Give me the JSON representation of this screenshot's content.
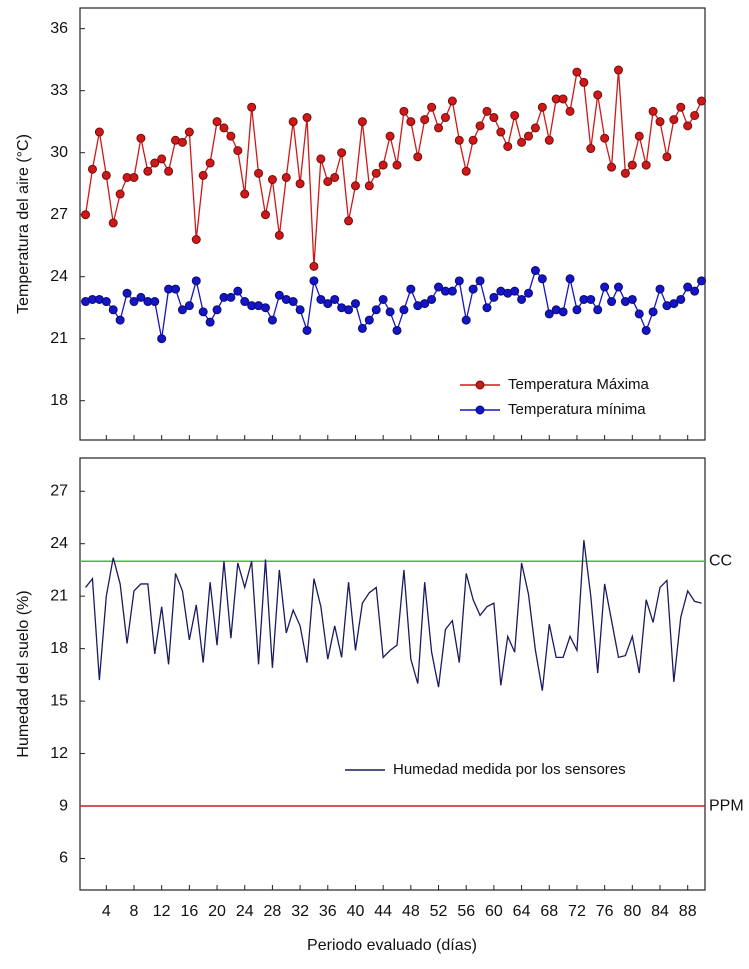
{
  "chart_data": [
    {
      "type": "line",
      "ylabel": "Temperatura del aire (°C)",
      "x": [
        1,
        2,
        3,
        4,
        5,
        6,
        7,
        8,
        9,
        10,
        11,
        12,
        13,
        14,
        15,
        16,
        17,
        18,
        19,
        20,
        21,
        22,
        23,
        24,
        25,
        26,
        27,
        28,
        29,
        30,
        31,
        32,
        33,
        34,
        35,
        36,
        37,
        38,
        39,
        40,
        41,
        42,
        43,
        44,
        45,
        46,
        47,
        48,
        49,
        50,
        51,
        52,
        53,
        54,
        55,
        56,
        57,
        58,
        59,
        60,
        61,
        62,
        63,
        64,
        65,
        66,
        67,
        68,
        69,
        70,
        71,
        72,
        73,
        74,
        75,
        76,
        77,
        78,
        79,
        80,
        81,
        82,
        83,
        84,
        85,
        86,
        87,
        88,
        89,
        90
      ],
      "series": [
        {
          "name": "Temperatura Máxima",
          "color": "#d01818",
          "marker": true,
          "values": [
            27.0,
            29.2,
            31.0,
            28.9,
            26.6,
            28.0,
            28.8,
            28.8,
            30.7,
            29.1,
            29.5,
            29.7,
            29.1,
            30.6,
            30.5,
            31.0,
            25.8,
            28.9,
            29.5,
            31.5,
            31.2,
            30.8,
            30.1,
            28.0,
            32.2,
            29.0,
            27.0,
            28.7,
            26.0,
            28.8,
            31.5,
            28.5,
            31.7,
            24.5,
            29.7,
            28.6,
            28.8,
            30.0,
            26.7,
            28.4,
            31.5,
            28.4,
            29.0,
            29.4,
            30.8,
            29.4,
            32.0,
            31.5,
            29.8,
            31.6,
            32.2,
            31.2,
            31.7,
            32.5,
            30.6,
            29.1,
            30.6,
            31.3,
            32.0,
            31.7,
            31.0,
            30.3,
            31.8,
            30.5,
            30.8,
            31.2,
            32.2,
            30.6,
            32.6,
            32.6,
            32.0,
            33.9,
            33.4,
            30.2,
            32.8,
            30.7,
            29.3,
            34.0,
            29.0,
            29.4,
            30.8,
            29.4,
            32.0,
            31.5,
            29.8,
            31.6,
            32.2,
            31.3,
            31.8,
            32.5
          ]
        },
        {
          "name": "Temperatura mínima",
          "color": "#1414c8",
          "marker": true,
          "values": [
            22.8,
            22.9,
            22.9,
            22.8,
            22.4,
            21.9,
            23.2,
            22.8,
            23.0,
            22.8,
            22.8,
            21.0,
            23.4,
            23.4,
            22.4,
            22.6,
            23.8,
            22.3,
            21.8,
            22.4,
            23.0,
            23.0,
            23.3,
            22.8,
            22.6,
            22.6,
            22.5,
            21.9,
            23.1,
            22.9,
            22.8,
            22.4,
            21.4,
            23.8,
            22.9,
            22.7,
            22.9,
            22.5,
            22.4,
            22.7,
            21.5,
            21.9,
            22.4,
            22.9,
            22.3,
            21.4,
            22.4,
            23.4,
            22.6,
            22.7,
            22.9,
            23.5,
            23.3,
            23.3,
            23.8,
            21.9,
            23.4,
            23.8,
            22.5,
            23.0,
            23.3,
            23.2,
            23.3,
            22.9,
            23.2,
            24.3,
            23.9,
            22.2,
            22.4,
            22.3,
            23.9,
            22.4,
            22.9,
            22.9,
            22.4,
            23.5,
            22.8,
            23.5,
            22.8,
            22.9,
            22.2,
            21.4,
            22.3,
            23.4,
            22.6,
            22.7,
            22.9,
            23.5,
            23.3,
            23.8
          ]
        }
      ],
      "xlim": [
        0.2,
        90.5
      ],
      "ylim": [
        16.1,
        37
      ],
      "yticks": [
        18,
        21,
        24,
        27,
        30,
        33,
        36
      ],
      "legend": "lower right"
    },
    {
      "type": "line",
      "ylabel": "Humedad del suelo (%)",
      "xlabel": "Periodo evaluado (días)",
      "x": [
        1,
        2,
        3,
        4,
        5,
        6,
        7,
        8,
        9,
        10,
        11,
        12,
        13,
        14,
        15,
        16,
        17,
        18,
        19,
        20,
        21,
        22,
        23,
        24,
        25,
        26,
        27,
        28,
        29,
        30,
        31,
        32,
        33,
        34,
        35,
        36,
        37,
        38,
        39,
        40,
        41,
        42,
        43,
        44,
        45,
        46,
        47,
        48,
        49,
        50,
        51,
        52,
        53,
        54,
        55,
        56,
        57,
        58,
        59,
        60,
        61,
        62,
        63,
        64,
        65,
        66,
        67,
        68,
        69,
        70,
        71,
        72,
        73,
        74,
        75,
        76,
        77,
        78,
        79,
        80,
        81,
        82,
        83,
        84,
        85,
        86,
        87,
        88,
        89,
        90
      ],
      "series": [
        {
          "name": "Humedad medida por los sensores",
          "color": "#1a1a60",
          "marker": false,
          "values": [
            21.5,
            22.0,
            16.2,
            21.0,
            23.2,
            21.7,
            18.3,
            21.3,
            21.7,
            21.7,
            17.7,
            20.4,
            17.1,
            22.3,
            21.3,
            18.5,
            20.5,
            17.2,
            21.8,
            18.2,
            23.0,
            18.6,
            22.9,
            21.5,
            23.0,
            17.1,
            23.1,
            16.9,
            22.5,
            18.9,
            20.2,
            19.3,
            17.2,
            22.0,
            20.4,
            17.4,
            19.3,
            17.5,
            21.8,
            17.9,
            20.6,
            21.2,
            21.5,
            17.5,
            17.9,
            18.2,
            22.5,
            17.4,
            16.0,
            21.8,
            17.8,
            15.8,
            19.1,
            19.6,
            17.2,
            22.3,
            20.8,
            19.9,
            20.4,
            20.6,
            15.9,
            18.7,
            17.8,
            22.9,
            21.1,
            17.9,
            15.6,
            19.4,
            17.5,
            17.5,
            18.7,
            17.9,
            24.2,
            21.0,
            16.6,
            21.7,
            19.6,
            17.5,
            17.6,
            18.7,
            16.6,
            20.8,
            19.5,
            21.5,
            21.9,
            16.1,
            19.8,
            21.3,
            20.7,
            20.6
          ]
        }
      ],
      "reference_lines": [
        {
          "label": "CC",
          "value": 23,
          "color": "#30c830"
        },
        {
          "label": "PPM",
          "value": 9,
          "color": "#d02020"
        }
      ],
      "xlim": [
        0.2,
        90.5
      ],
      "ylim": [
        4.2,
        28.9
      ],
      "xticks": [
        4,
        8,
        12,
        16,
        20,
        24,
        28,
        32,
        36,
        40,
        44,
        48,
        52,
        56,
        60,
        64,
        68,
        72,
        76,
        80,
        84,
        88
      ],
      "yticks": [
        6,
        9,
        12,
        15,
        18,
        21,
        24,
        27
      ],
      "legend": "lower center"
    }
  ]
}
